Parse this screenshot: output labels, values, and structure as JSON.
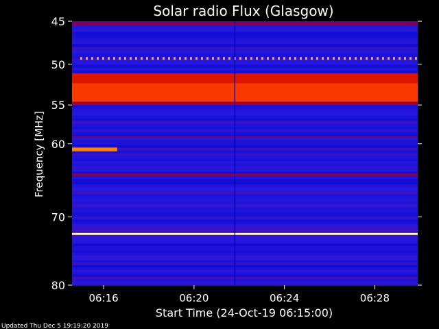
{
  "chart_data": {
    "type": "heatmap",
    "title": "Solar radio Flux (Glasgow)",
    "xlabel": "Start Time (24-Oct-19 06:15:00)",
    "ylabel": "Frequency [MHz]",
    "x_range_minutes_after_0615": [
      -0.4,
      14.9
    ],
    "y_range_mhz": [
      45,
      80
    ],
    "y_ticks": [
      45,
      50,
      55,
      60,
      70,
      80
    ],
    "y_tick_labels": [
      "45",
      "50",
      "55",
      "60",
      "70",
      "80"
    ],
    "x_ticks_minutes_after_0615": [
      1,
      5,
      9,
      13
    ],
    "x_tick_labels": [
      "06:16",
      "06:20",
      "06:24",
      "06:28"
    ],
    "colormap": [
      "#000060",
      "#0000c8",
      "#2a1ae0",
      "#7a0060",
      "#c80000",
      "#ff4000",
      "#ffb000",
      "#ffffff"
    ],
    "bands": [
      {
        "freq_start": 45.1,
        "freq_end": 45.5,
        "level": 0.45
      },
      {
        "freq_start": 51.1,
        "freq_end": 52.3,
        "level": 0.62
      },
      {
        "freq_start": 52.3,
        "freq_end": 54.6,
        "level": 0.7
      },
      {
        "freq_start": 54.6,
        "freq_end": 55.0,
        "level": 0.5
      },
      {
        "freq_start": 59.0,
        "freq_end": 59.3,
        "level": 0.38
      },
      {
        "freq_start": 64.0,
        "freq_end": 64.4,
        "level": 0.45
      },
      {
        "freq_start": 72.3,
        "freq_end": 72.6,
        "level": 0.9
      }
    ],
    "features": [
      {
        "name": "dotted line",
        "freq": 49.3,
        "note": "periodic interference"
      },
      {
        "name": "burst",
        "freq_start": 60.5,
        "freq_end": 61.0,
        "time_start": -0.4,
        "time_end": 1.6,
        "level": 0.8
      },
      {
        "name": "vertical artifact",
        "time": 6.8
      }
    ]
  },
  "footer": {
    "updated": "Updated Thu Dec  5 19:19:20 2019"
  },
  "colors": {
    "background": "#000000",
    "text": "#ffffff"
  }
}
